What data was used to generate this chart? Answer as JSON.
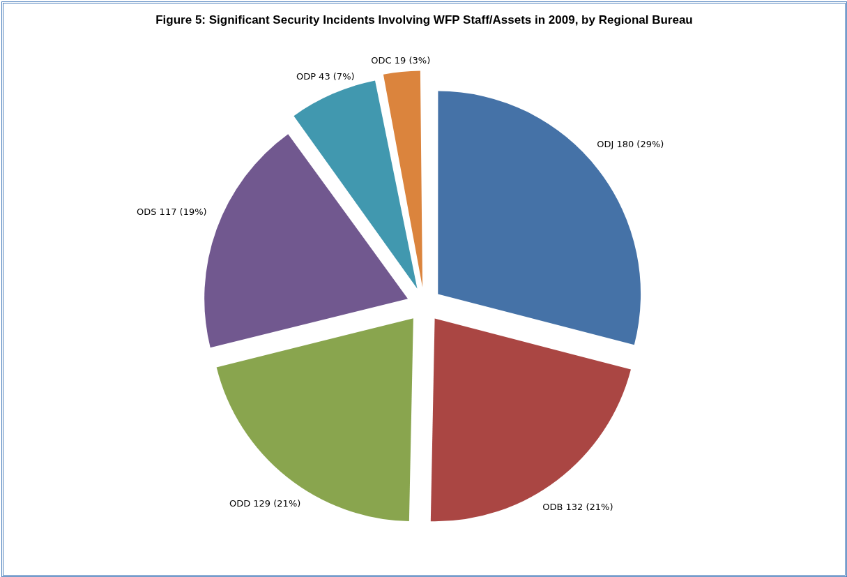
{
  "chart_data": {
    "type": "pie",
    "title": "Figure 5: Significant Security Incidents Involving WFP Staff/Assets in 2009, by Regional Bureau",
    "categories": [
      "ODJ",
      "ODB",
      "ODD",
      "ODS",
      "ODP",
      "ODC"
    ],
    "values": [
      180,
      132,
      129,
      117,
      43,
      19
    ],
    "value_labels": [
      "180 (29%)",
      "132 (21%)",
      "129 (21%)",
      "117 (19%)",
      "43 (7%)",
      "19 (3%)"
    ],
    "colors": [
      "#4572a7",
      "#aa4643",
      "#89a54e",
      "#71588f",
      "#4198af",
      "#db843d"
    ],
    "legend": false
  }
}
